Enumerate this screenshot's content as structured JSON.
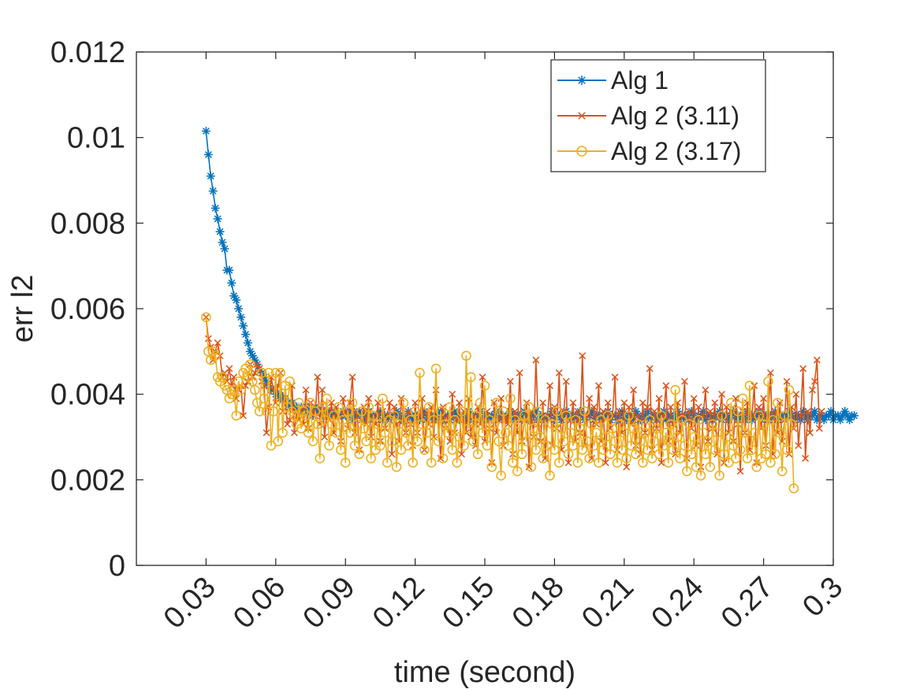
{
  "chart_data": {
    "type": "line",
    "title": "",
    "xlabel": "time (second)",
    "ylabel": "err l2",
    "xlim": [
      0,
      0.3
    ],
    "ylim": [
      0,
      0.012
    ],
    "x_ticks": [
      0.03,
      0.06,
      0.09,
      0.12,
      0.15,
      0.18,
      0.21,
      0.24,
      0.27,
      0.3
    ],
    "x_tick_labels": [
      "0.03",
      "0.06",
      "0.09",
      "0.12",
      "0.15",
      "0.18",
      "0.21",
      "0.24",
      "0.27",
      "0.3"
    ],
    "y_ticks": [
      0,
      0.002,
      0.004,
      0.006,
      0.008,
      0.01,
      0.012
    ],
    "y_tick_labels": [
      "0",
      "0.002",
      "0.004",
      "0.006",
      "0.008",
      "0.01",
      "0.012"
    ],
    "grid": false,
    "legend_position": "top-right",
    "x_start": 0.03,
    "x_step": 0.001,
    "series": [
      {
        "name": "Alg 1",
        "color": "#0072BD",
        "marker": "asterisk",
        "values": [
          0.01015,
          0.0096,
          0.0091,
          0.00875,
          0.00835,
          0.0081,
          0.0078,
          0.00755,
          0.0074,
          0.0069,
          0.0069,
          0.0066,
          0.0063,
          0.0062,
          0.006,
          0.0058,
          0.0056,
          0.0054,
          0.0052,
          0.005,
          0.0049,
          0.0048,
          0.0047,
          0.0046,
          0.0045,
          0.0044,
          0.0043,
          0.0042,
          0.0041,
          0.0041,
          0.004,
          0.004,
          0.0039,
          0.00395,
          0.0039,
          0.0038,
          0.0037,
          0.0038,
          0.0037,
          0.0037,
          0.0036,
          0.0037,
          0.0036,
          0.0036,
          0.0037,
          0.0036,
          0.0035,
          0.0037,
          0.0036,
          0.0036,
          0.0035,
          0.0036,
          0.0035,
          0.0036,
          0.0035,
          0.0036,
          0.0035,
          0.0035,
          0.0035,
          0.0036,
          0.0035,
          0.0035,
          0.0036,
          0.0034,
          0.0035,
          0.0035,
          0.0036,
          0.0035,
          0.0034,
          0.0035,
          0.0036,
          0.0035,
          0.0034,
          0.0035,
          0.0035,
          0.0036,
          0.0034,
          0.0035,
          0.0035,
          0.0034,
          0.0035,
          0.0035,
          0.0036,
          0.0035,
          0.0034,
          0.0035,
          0.0034,
          0.0036,
          0.0035,
          0.0034,
          0.0035,
          0.0035,
          0.0034,
          0.0035,
          0.0036,
          0.0034,
          0.0035,
          0.0035,
          0.0034,
          0.0035,
          0.0035,
          0.0036,
          0.0034,
          0.0035,
          0.0035,
          0.0034,
          0.0035,
          0.0036,
          0.0035,
          0.0034,
          0.0035,
          0.0035,
          0.0034,
          0.0036,
          0.0035,
          0.0034,
          0.0035,
          0.0035,
          0.0036,
          0.0034,
          0.0035,
          0.0035,
          0.0034,
          0.0035,
          0.0035,
          0.0036,
          0.0034,
          0.0035,
          0.0035,
          0.0034,
          0.0035,
          0.0036,
          0.0035,
          0.0034,
          0.0035,
          0.0035,
          0.0034,
          0.0036,
          0.0035,
          0.0034,
          0.0035,
          0.0035,
          0.0036,
          0.0034,
          0.0035,
          0.0035,
          0.0034,
          0.0035,
          0.0035,
          0.0036,
          0.0034,
          0.0035,
          0.0035,
          0.0034,
          0.0035,
          0.0036,
          0.0035,
          0.0034,
          0.0035,
          0.0035,
          0.0034,
          0.0036,
          0.0035,
          0.0034,
          0.0035,
          0.0035,
          0.0036,
          0.0034,
          0.0035,
          0.0035,
          0.0034,
          0.0035,
          0.0035,
          0.0036,
          0.0034,
          0.0035,
          0.0035,
          0.0034,
          0.0035,
          0.0036,
          0.0035,
          0.0034,
          0.0035,
          0.0035,
          0.0034,
          0.0036,
          0.0035,
          0.0034,
          0.0035,
          0.0035,
          0.0036,
          0.0034,
          0.0035,
          0.0035,
          0.0034,
          0.0035,
          0.0035,
          0.0036,
          0.0034,
          0.0035,
          0.0035,
          0.0034,
          0.0035,
          0.0036,
          0.0035,
          0.0034,
          0.0035,
          0.0035,
          0.0034,
          0.0036,
          0.0035,
          0.0034,
          0.0035,
          0.0035,
          0.0036,
          0.0034,
          0.0035,
          0.0035,
          0.0034,
          0.0035,
          0.0035,
          0.0036,
          0.0034,
          0.0035,
          0.0035,
          0.0034,
          0.0035,
          0.0036,
          0.0035,
          0.0034,
          0.0035,
          0.0035,
          0.0034,
          0.0036,
          0.0035,
          0.0034,
          0.0035,
          0.0035,
          0.0036,
          0.0034,
          0.0035,
          0.0035,
          0.0034,
          0.0035,
          0.0035,
          0.0036,
          0.0034,
          0.0035,
          0.0035,
          0.0034,
          0.0035,
          0.0036,
          0.0035,
          0.0034,
          0.0035,
          0.0035,
          0.0034,
          0.0036,
          0.0035,
          0.0034,
          0.0035,
          0.0035,
          0.0036,
          0.0034,
          0.0035,
          0.0035,
          0.0034,
          0.0035,
          0.0035,
          0.0036,
          0.0034,
          0.0035,
          0.0035,
          0.0034,
          0.0035,
          0.0036,
          0.0035,
          0.0034,
          0.0035,
          0.0035
        ]
      },
      {
        "name": "Alg 2 (3.11)",
        "color": "#D95319",
        "marker": "x",
        "values": [
          0.0058,
          0.0053,
          0.0051,
          0.0048,
          0.005,
          0.0052,
          0.0049,
          0.0044,
          0.0045,
          0.0043,
          0.0046,
          0.0042,
          0.0044,
          0.0039,
          0.0041,
          0.0042,
          0.0035,
          0.0042,
          0.0043,
          0.0047,
          0.0044,
          0.0045,
          0.0047,
          0.0046,
          0.0043,
          0.0042,
          0.0031,
          0.0037,
          0.0044,
          0.0041,
          0.0038,
          0.0042,
          0.0045,
          0.0036,
          0.0039,
          0.0033,
          0.0034,
          0.0042,
          0.0031,
          0.0036,
          0.0034,
          0.0037,
          0.0033,
          0.0041,
          0.0032,
          0.0038,
          0.0036,
          0.0035,
          0.0044,
          0.0033,
          0.0041,
          0.003,
          0.0036,
          0.0034,
          0.0038,
          0.0031,
          0.0037,
          0.0035,
          0.0029,
          0.0039,
          0.0036,
          0.0032,
          0.0038,
          0.0044,
          0.0031,
          0.0036,
          0.0027,
          0.0034,
          0.0037,
          0.0033,
          0.0039,
          0.003,
          0.0035,
          0.0033,
          0.0038,
          0.0029,
          0.0036,
          0.0032,
          0.0035,
          0.0038,
          0.0026,
          0.0037,
          0.0033,
          0.0029,
          0.0039,
          0.0034,
          0.0031,
          0.0036,
          0.0033,
          0.0028,
          0.0038,
          0.0031,
          0.0035,
          0.0039,
          0.0027,
          0.0036,
          0.0033,
          0.0037,
          0.003,
          0.0041,
          0.0034,
          0.0025,
          0.0037,
          0.0032,
          0.0035,
          0.0029,
          0.004,
          0.0031,
          0.0034,
          0.0038,
          0.0026,
          0.0036,
          0.0031,
          0.0039,
          0.003,
          0.0035,
          0.0028,
          0.0037,
          0.0033,
          0.0044,
          0.0029,
          0.0036,
          0.0032,
          0.0024,
          0.0038,
          0.0031,
          0.0034,
          0.0039,
          0.0028,
          0.0035,
          0.0033,
          0.0043,
          0.0026,
          0.0036,
          0.0031,
          0.0045,
          0.0029,
          0.0034,
          0.0038,
          0.0023,
          0.0036,
          0.003,
          0.0048,
          0.0033,
          0.0029,
          0.0038,
          0.0025,
          0.0035,
          0.0042,
          0.0028,
          0.0037,
          0.0032,
          0.0045,
          0.0027,
          0.0036,
          0.0043,
          0.0024,
          0.0034,
          0.0038,
          0.0029,
          0.0036,
          0.0031,
          0.0049,
          0.0028,
          0.0035,
          0.0039,
          0.0025,
          0.0037,
          0.0033,
          0.0042,
          0.0029,
          0.0036,
          0.0024,
          0.0038,
          0.0032,
          0.0035,
          0.0044,
          0.0027,
          0.0036,
          0.0031,
          0.0038,
          0.0023,
          0.0037,
          0.0033,
          0.0041,
          0.0028,
          0.0035,
          0.0026,
          0.0038,
          0.0031,
          0.0037,
          0.0046,
          0.0027,
          0.0036,
          0.0032,
          0.0039,
          0.0024,
          0.0035,
          0.0042,
          0.0029,
          0.0037,
          0.0033,
          0.0026,
          0.0038,
          0.0031,
          0.0035,
          0.0043,
          0.0025,
          0.0036,
          0.0032,
          0.0039,
          0.0028,
          0.0037,
          0.0023,
          0.0035,
          0.0041,
          0.0029,
          0.0036,
          0.0032,
          0.0038,
          0.0026,
          0.0035,
          0.004,
          0.0024,
          0.0037,
          0.0031,
          0.0036,
          0.0029,
          0.0039,
          0.0033,
          0.0022,
          0.0036,
          0.0031,
          0.0038,
          0.0027,
          0.0035,
          0.0042,
          0.0024,
          0.0037,
          0.0032,
          0.0039,
          0.0028,
          0.0035,
          0.0045,
          0.0026,
          0.0036,
          0.0031,
          0.0038,
          0.0029,
          0.0034,
          0.0043,
          0.0026,
          0.0037,
          0.0032,
          0.004,
          0.0028,
          0.0035,
          0.0046,
          0.0025,
          0.0036,
          0.0031,
          0.0041,
          0.0043,
          0.0048,
          0.0032,
          0.0036
        ]
      },
      {
        "name": "Alg 2 (3.17)",
        "color": "#EDB120",
        "marker": "o",
        "values": [
          0.0058,
          0.005,
          0.0048,
          0.005,
          0.0049,
          0.0044,
          0.0043,
          0.0044,
          0.0042,
          0.0041,
          0.0039,
          0.004,
          0.0041,
          0.0035,
          0.0043,
          0.0041,
          0.0045,
          0.0046,
          0.0044,
          0.0047,
          0.0043,
          0.0041,
          0.0038,
          0.0036,
          0.0045,
          0.0039,
          0.0036,
          0.0045,
          0.0028,
          0.0036,
          0.0045,
          0.0029,
          0.0045,
          0.0031,
          0.0042,
          0.0037,
          0.0043,
          0.0036,
          0.0035,
          0.0033,
          0.0038,
          0.0032,
          0.0036,
          0.0035,
          0.0031,
          0.0038,
          0.0029,
          0.0036,
          0.0033,
          0.0025,
          0.0037,
          0.0034,
          0.0039,
          0.0028,
          0.0033,
          0.0035,
          0.0031,
          0.0037,
          0.0027,
          0.0034,
          0.0024,
          0.0036,
          0.0031,
          0.0038,
          0.0028,
          0.0033,
          0.0026,
          0.0036,
          0.0032,
          0.0029,
          0.0037,
          0.0025,
          0.0035,
          0.0027,
          0.0033,
          0.0028,
          0.0039,
          0.0031,
          0.0024,
          0.0034,
          0.0029,
          0.0035,
          0.0023,
          0.0033,
          0.0027,
          0.0038,
          0.0031,
          0.0028,
          0.0034,
          0.0024,
          0.0036,
          0.0029,
          0.0045,
          0.0033,
          0.0027,
          0.0031,
          0.0037,
          0.0024,
          0.0034,
          0.0046,
          0.0029,
          0.0036,
          0.0025,
          0.0033,
          0.0031,
          0.0037,
          0.0027,
          0.0034,
          0.0024,
          0.003,
          0.0036,
          0.0028,
          0.0049,
          0.0032,
          0.0044,
          0.0029,
          0.0035,
          0.0026,
          0.0038,
          0.0031,
          0.0042,
          0.0028,
          0.0034,
          0.0023,
          0.0033,
          0.0038,
          0.0029,
          0.0021,
          0.0036,
          0.0031,
          0.0028,
          0.0039,
          0.0024,
          0.0034,
          0.0022,
          0.0033,
          0.0026,
          0.0035,
          0.0029,
          0.0037,
          0.0023,
          0.0032,
          0.0027,
          0.0036,
          0.003,
          0.0025,
          0.0034,
          0.0028,
          0.0021,
          0.0033,
          0.0027,
          0.0036,
          0.0024,
          0.0032,
          0.0029,
          0.0035,
          0.0026,
          0.0031,
          0.0028,
          0.0034,
          0.0024,
          0.0032,
          0.0027,
          0.0036,
          0.0029,
          0.0025,
          0.0033,
          0.0028,
          0.0031,
          0.0024,
          0.0034,
          0.0027,
          0.003,
          0.0035,
          0.0026,
          0.0032,
          0.0029,
          0.0024,
          0.0033,
          0.0027,
          0.0031,
          0.0025,
          0.0035,
          0.0028,
          0.0032,
          0.0026,
          0.0033,
          0.0029,
          0.0024,
          0.0031,
          0.0027,
          0.0034,
          0.0025,
          0.0029,
          0.0032,
          0.0026,
          0.0035,
          0.0028,
          0.0031,
          0.0024,
          0.0033,
          0.0027,
          0.0041,
          0.003,
          0.0025,
          0.0034,
          0.0028,
          0.0022,
          0.0033,
          0.0026,
          0.003,
          0.0023,
          0.0034,
          0.0021,
          0.0031,
          0.0026,
          0.0029,
          0.0023,
          0.0033,
          0.0027,
          0.0031,
          0.0021,
          0.0035,
          0.0026,
          0.003,
          0.0024,
          0.0038,
          0.0028,
          0.0025,
          0.0036,
          0.0027,
          0.0039,
          0.0031,
          0.0025,
          0.0042,
          0.0027,
          0.0031,
          0.0023,
          0.0035,
          0.0025,
          0.0033,
          0.0026,
          0.0043,
          0.0024,
          0.0034,
          0.0026,
          0.0038,
          0.0031,
          0.0022,
          0.0035,
          0.0027,
          0.0041,
          0.0033,
          0.0018
        ]
      }
    ]
  }
}
